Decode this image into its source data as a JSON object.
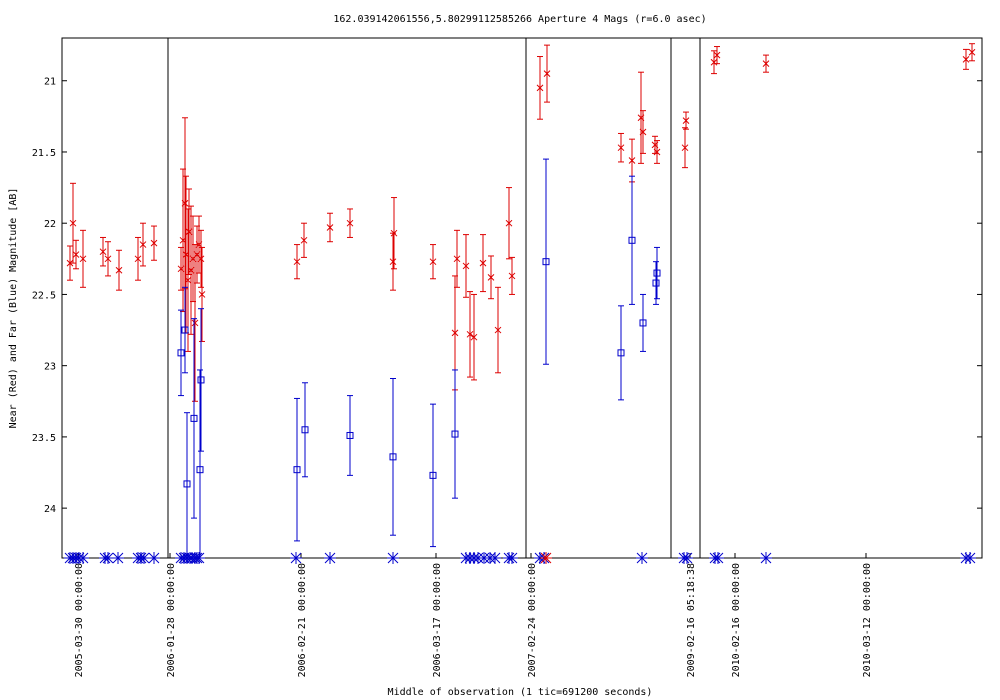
{
  "chart_data": {
    "type": "scatter",
    "title": "162.039142061556,5.80299112585266   Aperture 4 Mags (r=6.0 asec)",
    "xlabel": "Middle of observation (1 tic=691200 seconds)",
    "ylabel": "Near (Red) and Far (Blue) Magnitude [AB]",
    "ylim": [
      24.35,
      20.7
    ],
    "y_ticks": [
      "21",
      "21.5",
      "22",
      "22.5",
      "23",
      "23.5",
      "24"
    ],
    "x_ticks": [
      "2005-03-30 00:00:00",
      "2006-01-28 00:00:00",
      "2006-02-21 00:00:00",
      "2006-03-17 00:00:00",
      "2007-02-24 00:00:00",
      "2009-02-16 05:18:38",
      "2010-02-16 00:00:00",
      "2010-03-12 00:00:00"
    ],
    "colors": {
      "near": "#dd0000",
      "far": "#0000cc"
    },
    "series": [
      {
        "name": "Near (Red)",
        "points": [
          [
            70,
            22.28,
            0.12
          ],
          [
            73,
            22.0,
            0.28
          ],
          [
            76,
            22.22,
            0.1
          ],
          [
            83,
            22.25,
            0.2
          ],
          [
            103,
            22.2,
            0.1
          ],
          [
            108,
            22.25,
            0.12
          ],
          [
            119,
            22.33,
            0.14
          ],
          [
            138,
            22.25,
            0.15
          ],
          [
            143,
            22.15,
            0.15
          ],
          [
            154,
            22.14,
            0.12
          ],
          [
            181,
            22.32,
            0.15
          ],
          [
            183,
            22.12,
            0.5
          ],
          [
            185,
            21.86,
            0.6
          ],
          [
            186,
            22.22,
            0.55
          ],
          [
            188,
            22.4,
            0.5
          ],
          [
            189,
            22.06,
            0.3
          ],
          [
            191,
            22.33,
            0.45
          ],
          [
            193,
            22.25,
            0.3
          ],
          [
            195,
            22.7,
            0.55
          ],
          [
            197,
            22.22,
            0.2
          ],
          [
            199,
            22.15,
            0.2
          ],
          [
            201,
            22.25,
            0.2
          ],
          [
            202,
            22.5,
            0.33
          ],
          [
            297,
            22.27,
            0.12
          ],
          [
            304,
            22.12,
            0.12
          ],
          [
            330,
            22.03,
            0.1
          ],
          [
            350,
            22.0,
            0.1
          ],
          [
            393,
            22.27,
            0.2
          ],
          [
            394,
            22.07,
            0.25
          ],
          [
            433,
            22.27,
            0.12
          ],
          [
            455,
            22.77,
            0.4
          ],
          [
            457,
            22.25,
            0.2
          ],
          [
            466,
            22.3,
            0.22
          ],
          [
            470,
            22.78,
            0.3
          ],
          [
            474,
            22.8,
            0.3
          ],
          [
            483,
            22.28,
            0.2
          ],
          [
            491,
            22.38,
            0.15
          ],
          [
            498,
            22.75,
            0.3
          ],
          [
            509,
            22.0,
            0.25
          ],
          [
            512,
            22.37,
            0.13
          ],
          [
            540,
            21.05,
            0.22
          ],
          [
            547,
            20.95,
            0.2
          ],
          [
            621,
            21.47,
            0.1
          ],
          [
            632,
            21.56,
            0.15
          ],
          [
            641,
            21.26,
            0.32
          ],
          [
            643,
            21.36,
            0.15
          ],
          [
            655,
            21.45,
            0.06
          ],
          [
            657,
            21.5,
            0.08
          ],
          [
            685,
            21.47,
            0.14
          ],
          [
            686,
            21.28,
            0.06
          ],
          [
            714,
            20.87,
            0.08
          ],
          [
            717,
            20.82,
            0.06
          ],
          [
            766,
            20.88,
            0.06
          ],
          [
            966,
            20.85,
            0.07
          ],
          [
            972,
            20.8,
            0.06
          ]
        ]
      },
      {
        "name": "Far (Blue)",
        "points": [
          [
            181,
            22.91,
            0.3
          ],
          [
            185,
            22.75,
            0.3
          ],
          [
            187,
            23.83,
            0.5
          ],
          [
            194,
            23.37,
            0.7
          ],
          [
            200,
            23.73,
            0.7
          ],
          [
            201,
            23.1,
            0.5
          ],
          [
            297,
            23.73,
            0.5
          ],
          [
            305,
            23.45,
            0.33
          ],
          [
            350,
            23.49,
            0.28
          ],
          [
            393,
            23.64,
            0.55
          ],
          [
            433,
            23.77,
            0.5
          ],
          [
            455,
            23.48,
            0.45
          ],
          [
            546,
            22.27,
            0.72
          ],
          [
            621,
            22.91,
            0.33
          ],
          [
            632,
            22.12,
            0.45
          ],
          [
            643,
            22.7,
            0.2
          ],
          [
            656,
            22.42,
            0.15
          ],
          [
            657,
            22.35,
            0.18
          ]
        ]
      }
    ],
    "upper_limits_x": [
      70,
      73,
      76,
      79,
      83,
      105,
      108,
      118,
      138,
      141,
      144,
      154,
      181,
      184,
      187,
      190,
      192,
      195,
      197,
      199,
      296,
      330,
      393,
      466,
      470,
      474,
      478,
      484,
      490,
      495,
      509,
      512,
      540,
      544,
      642,
      684,
      687,
      715,
      718,
      766,
      966,
      970
    ],
    "markers_red_bottom_x": [
      546
    ]
  }
}
